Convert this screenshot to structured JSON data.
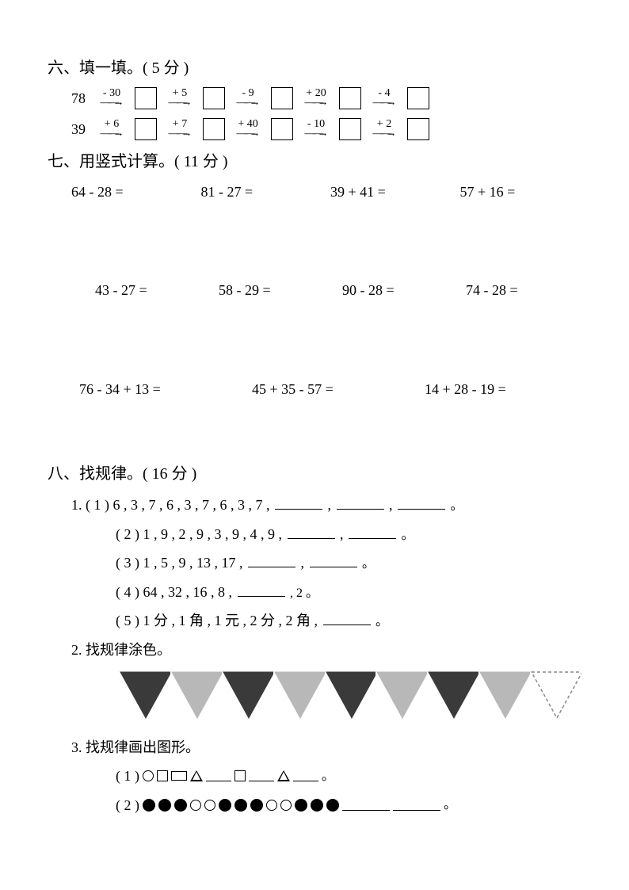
{
  "section6": {
    "title": "六、填一填。( 5 分 )",
    "chains": [
      {
        "start": "78",
        "ops": [
          "- 30",
          "+ 5",
          "- 9",
          "+ 20",
          "- 4"
        ]
      },
      {
        "start": "39",
        "ops": [
          "+ 6",
          "+ 7",
          "+ 40",
          "- 10",
          "+ 2"
        ]
      }
    ]
  },
  "section7": {
    "title": "七、用竖式计算。( 11 分 )",
    "row1": [
      "64 - 28 =",
      "81 - 27 =",
      "39 + 41 =",
      "57 + 16 ="
    ],
    "row2": [
      "43 - 27 =",
      "58 - 29 =",
      "90 - 28 =",
      "74 - 28 ="
    ],
    "row3": [
      "76 - 34 + 13 =",
      "45 + 35 - 57 =",
      "14 + 28 - 19 ="
    ]
  },
  "section8": {
    "title": "八、找规律。( 16 分 )",
    "q1_label": "1.",
    "q1_items": [
      {
        "label": "( 1 )",
        "seq": "6 , 3 , 7 , 6 , 3 , 7 , 6 , 3 , 7 ,",
        "blanks": 3,
        "tail": "。"
      },
      {
        "label": "( 2 )",
        "seq": "1 , 9 , 2 , 9 , 3 , 9 , 4 , 9 ,",
        "blanks": 2,
        "tail": "。"
      },
      {
        "label": "( 3 )",
        "seq": "1 , 5 , 9 , 13 , 17 ,",
        "blanks": 2,
        "tail": "。"
      },
      {
        "label": "( 4 )",
        "seq": "64 , 32 , 16 , 8 ,",
        "blanks": 1,
        "tail": ", 2 。"
      },
      {
        "label": "( 5 )",
        "seq": "1 分 , 1 角 , 1 元 , 2 分 , 2 角 ,",
        "blanks": 1,
        "tail": "。"
      }
    ],
    "q2_label": "2. 找规律涂色。",
    "triangles": [
      {
        "fill": "#3a3a3a",
        "outline": false
      },
      {
        "fill": "#b8b8b8",
        "outline": false
      },
      {
        "fill": "#3a3a3a",
        "outline": false
      },
      {
        "fill": "#b8b8b8",
        "outline": false
      },
      {
        "fill": "#3a3a3a",
        "outline": false
      },
      {
        "fill": "#b8b8b8",
        "outline": false
      },
      {
        "fill": "#3a3a3a",
        "outline": false
      },
      {
        "fill": "#b8b8b8",
        "outline": false
      },
      {
        "fill": "none",
        "outline": true,
        "dashed": true
      }
    ],
    "triangle_width": 68,
    "triangle_height": 62,
    "q3_label": "3. 找规律画出图形。",
    "q3_1_label": "( 1 )",
    "q3_1_trailing": "。",
    "q3_2_label": "( 2 )",
    "q3_2_trailing": "。"
  }
}
